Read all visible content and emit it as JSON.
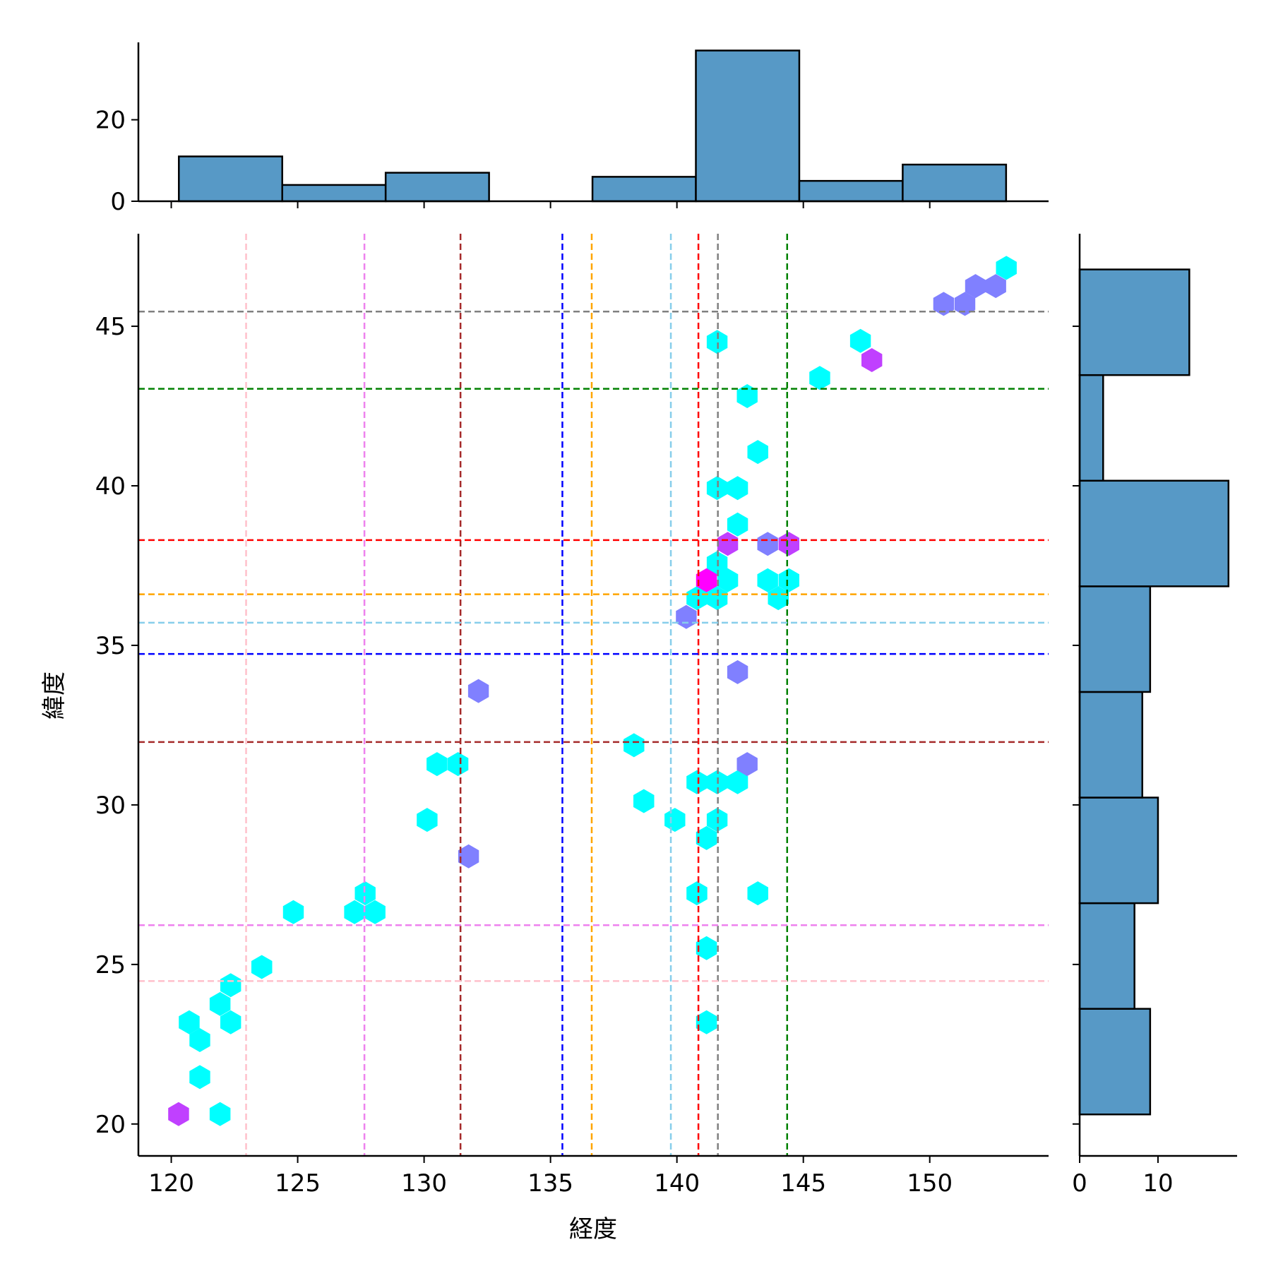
{
  "chart_data": {
    "type": "scatter",
    "subtype": "jointplot-hexbin",
    "xlabel": "経度",
    "ylabel": "緯度",
    "xlim": [
      118.7,
      154.7
    ],
    "ylim": [
      19.0,
      47.9
    ],
    "xticks": [
      120,
      125,
      130,
      135,
      140,
      145,
      150
    ],
    "yticks": [
      20,
      25,
      30,
      35,
      40,
      45
    ],
    "hex_colors": {
      "1": "#00ffff",
      "2": "#8080ff",
      "3": "#c040ff",
      "4": "#ff00ff"
    },
    "hexbins": [
      {
        "x": 153.03,
        "y": 46.83,
        "c": 1
      },
      {
        "x": 147.26,
        "y": 44.54,
        "c": 1
      },
      {
        "x": 141.59,
        "y": 44.51,
        "c": 1
      },
      {
        "x": 145.65,
        "y": 43.38,
        "c": 1
      },
      {
        "x": 142.78,
        "y": 42.81,
        "c": 1
      },
      {
        "x": 143.2,
        "y": 41.06,
        "c": 1
      },
      {
        "x": 141.59,
        "y": 39.93,
        "c": 1
      },
      {
        "x": 142.4,
        "y": 39.93,
        "c": 1
      },
      {
        "x": 142.4,
        "y": 38.79,
        "c": 1
      },
      {
        "x": 141.59,
        "y": 37.58,
        "c": 1
      },
      {
        "x": 142.01,
        "y": 37.04,
        "c": 1
      },
      {
        "x": 140.79,
        "y": 36.48,
        "c": 1
      },
      {
        "x": 141.59,
        "y": 36.48,
        "c": 1
      },
      {
        "x": 143.59,
        "y": 37.04,
        "c": 1
      },
      {
        "x": 144.43,
        "y": 37.04,
        "c": 1
      },
      {
        "x": 144.01,
        "y": 36.48,
        "c": 1
      },
      {
        "x": 138.3,
        "y": 31.87,
        "c": 1
      },
      {
        "x": 138.69,
        "y": 30.12,
        "c": 1
      },
      {
        "x": 139.92,
        "y": 29.53,
        "c": 1
      },
      {
        "x": 140.79,
        "y": 30.71,
        "c": 1
      },
      {
        "x": 141.59,
        "y": 30.71,
        "c": 1
      },
      {
        "x": 142.4,
        "y": 30.71,
        "c": 1
      },
      {
        "x": 141.17,
        "y": 28.96,
        "c": 1
      },
      {
        "x": 141.59,
        "y": 29.53,
        "c": 1
      },
      {
        "x": 140.79,
        "y": 27.23,
        "c": 1
      },
      {
        "x": 143.2,
        "y": 27.23,
        "c": 1
      },
      {
        "x": 141.17,
        "y": 25.51,
        "c": 1
      },
      {
        "x": 141.17,
        "y": 23.19,
        "c": 1
      },
      {
        "x": 130.51,
        "y": 31.28,
        "c": 1
      },
      {
        "x": 131.34,
        "y": 31.28,
        "c": 1
      },
      {
        "x": 130.12,
        "y": 29.53,
        "c": 1
      },
      {
        "x": 127.67,
        "y": 27.23,
        "c": 1
      },
      {
        "x": 127.25,
        "y": 26.64,
        "c": 1
      },
      {
        "x": 128.06,
        "y": 26.64,
        "c": 1
      },
      {
        "x": 124.83,
        "y": 26.64,
        "c": 1
      },
      {
        "x": 123.58,
        "y": 24.92,
        "c": 1
      },
      {
        "x": 122.35,
        "y": 24.35,
        "c": 1
      },
      {
        "x": 121.93,
        "y": 23.76,
        "c": 1
      },
      {
        "x": 122.35,
        "y": 23.19,
        "c": 1
      },
      {
        "x": 120.71,
        "y": 23.19,
        "c": 1
      },
      {
        "x": 121.13,
        "y": 22.63,
        "c": 1
      },
      {
        "x": 121.13,
        "y": 21.47,
        "c": 1
      },
      {
        "x": 121.93,
        "y": 20.31,
        "c": 1
      },
      {
        "x": 150.55,
        "y": 45.7,
        "c": 2
      },
      {
        "x": 151.39,
        "y": 45.7,
        "c": 2
      },
      {
        "x": 151.81,
        "y": 46.26,
        "c": 2
      },
      {
        "x": 152.61,
        "y": 46.26,
        "c": 2
      },
      {
        "x": 143.59,
        "y": 38.18,
        "c": 2
      },
      {
        "x": 140.37,
        "y": 35.89,
        "c": 2
      },
      {
        "x": 142.4,
        "y": 34.16,
        "c": 2
      },
      {
        "x": 132.15,
        "y": 33.57,
        "c": 2
      },
      {
        "x": 142.78,
        "y": 31.28,
        "c": 2
      },
      {
        "x": 131.76,
        "y": 28.39,
        "c": 2
      },
      {
        "x": 147.71,
        "y": 43.94,
        "c": 3
      },
      {
        "x": 142.01,
        "y": 38.18,
        "c": 3
      },
      {
        "x": 144.43,
        "y": 38.18,
        "c": 3
      },
      {
        "x": 120.29,
        "y": 20.31,
        "c": 3
      },
      {
        "x": 141.17,
        "y": 37.04,
        "c": 4
      }
    ],
    "vlines": [
      {
        "x": 122.96,
        "color": "#ffc0cb"
      },
      {
        "x": 127.64,
        "color": "#ee82ee"
      },
      {
        "x": 131.44,
        "color": "#a52a2a"
      },
      {
        "x": 135.47,
        "color": "#0000ff"
      },
      {
        "x": 136.63,
        "color": "#ffa500"
      },
      {
        "x": 139.76,
        "color": "#87ceeb"
      },
      {
        "x": 140.85,
        "color": "#ff0000"
      },
      {
        "x": 141.62,
        "color": "#808080"
      },
      {
        "x": 144.36,
        "color": "#008000"
      }
    ],
    "hlines": [
      {
        "y": 45.46,
        "color": "#808080"
      },
      {
        "y": 43.04,
        "color": "#008000"
      },
      {
        "y": 38.3,
        "color": "#ff0000"
      },
      {
        "y": 36.6,
        "color": "#ffa500"
      },
      {
        "y": 35.71,
        "color": "#87ceeb"
      },
      {
        "y": 34.73,
        "color": "#0000ff"
      },
      {
        "y": 31.97,
        "color": "#a52a2a"
      },
      {
        "y": 26.23,
        "color": "#ee82ee"
      },
      {
        "y": 24.48,
        "color": "#ffc0cb"
      }
    ],
    "top_hist": {
      "bin_start": 120.3,
      "bin_width": 4.09,
      "counts": [
        11,
        4,
        7,
        0,
        6,
        37,
        5,
        9
      ],
      "ylim": [
        0,
        39
      ],
      "yticks": [
        0,
        20
      ]
    },
    "right_hist": {
      "bin_start": 20.3,
      "bin_width": 3.31,
      "counts": [
        9,
        7,
        10,
        8,
        9,
        19,
        3,
        14
      ],
      "xlim": [
        0,
        20.1
      ],
      "xticks": [
        0,
        10
      ]
    },
    "hist_color": "#5799c6"
  }
}
